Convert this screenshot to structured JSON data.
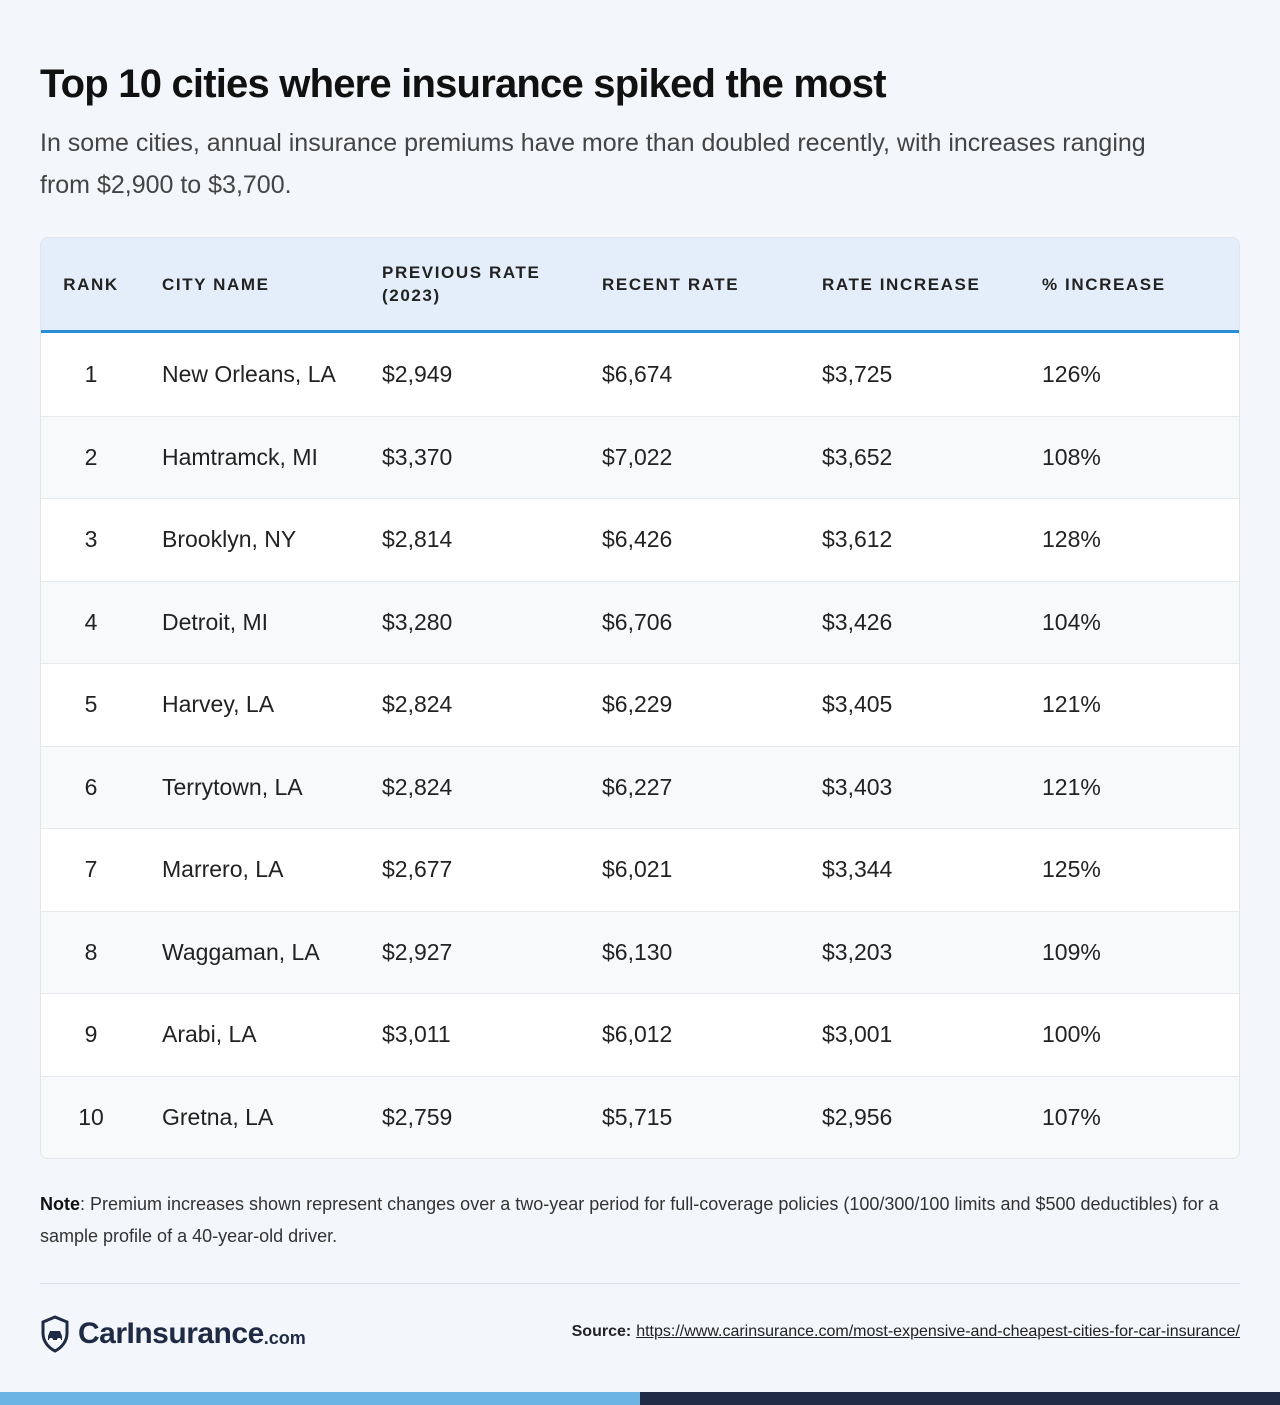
{
  "header": {
    "title": "Top 10 cities where insurance spiked the most",
    "subtitle": "In some cities, annual insurance premiums have more than doubled recently, with increases ranging from $2,900 to $3,700."
  },
  "table": {
    "columns": [
      "RANK",
      "CITY NAME",
      "PREVIOUS RATE (2023)",
      "RECENT RATE",
      "RATE INCREASE",
      "% INCREASE"
    ],
    "rows": [
      [
        "1",
        "New Orleans, LA",
        "$2,949",
        "$6,674",
        "$3,725",
        "126%"
      ],
      [
        "2",
        "Hamtramck, MI",
        "$3,370",
        "$7,022",
        "$3,652",
        "108%"
      ],
      [
        "3",
        "Brooklyn, NY",
        "$2,814",
        "$6,426",
        "$3,612",
        "128%"
      ],
      [
        "4",
        "Detroit, MI",
        "$3,280",
        "$6,706",
        "$3,426",
        "104%"
      ],
      [
        "5",
        "Harvey, LA",
        "$2,824",
        "$6,229",
        "$3,405",
        "121%"
      ],
      [
        "6",
        "Terrytown, LA",
        "$2,824",
        "$6,227",
        "$3,403",
        "121%"
      ],
      [
        "7",
        "Marrero, LA",
        "$2,677",
        "$6,021",
        "$3,344",
        "125%"
      ],
      [
        "8",
        "Waggaman, LA",
        "$2,927",
        "$6,130",
        "$3,203",
        "109%"
      ],
      [
        "9",
        "Arabi, LA",
        "$3,011",
        "$6,012",
        "$3,001",
        "100%"
      ],
      [
        "10",
        "Gretna, LA",
        "$2,759",
        "$5,715",
        "$2,956",
        "107%"
      ]
    ]
  },
  "note": {
    "label": "Note",
    "text": ": Premium increases shown represent changes over a two-year period for full-coverage policies (100/300/100 limits and $500 deductibles) for a sample profile of a 40-year-old driver."
  },
  "footer": {
    "brand": "CarInsurance",
    "brand_suffix": ".com",
    "source_label": "Source:",
    "source_url": "https://www.carinsurance.com/most-expensive-and-cheapest-cities-for-car-insurance/"
  }
}
